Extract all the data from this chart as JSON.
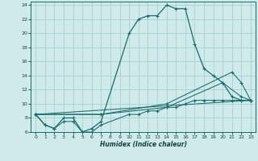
{
  "xlabel": "Humidex (Indice chaleur)",
  "bg_color": "#ceeaea",
  "grid_color": "#aacece",
  "line_color": "#1a6b6b",
  "xlim": [
    -0.5,
    23.5
  ],
  "ylim": [
    6,
    24.5
  ],
  "xticks": [
    0,
    1,
    2,
    3,
    4,
    5,
    6,
    7,
    8,
    9,
    10,
    11,
    12,
    13,
    14,
    15,
    16,
    17,
    18,
    19,
    20,
    21,
    22,
    23
  ],
  "yticks": [
    6,
    8,
    10,
    12,
    14,
    16,
    18,
    20,
    22,
    24
  ],
  "series": [
    {
      "x": [
        0,
        1,
        2,
        3,
        4,
        5,
        6,
        7,
        10,
        11,
        12,
        13,
        14,
        15,
        16,
        17,
        18,
        19,
        20,
        21,
        22,
        23
      ],
      "y": [
        8.5,
        7.0,
        6.5,
        8.0,
        8.0,
        6.0,
        6.5,
        7.5,
        20.0,
        22.0,
        22.5,
        22.5,
        24.0,
        23.5,
        23.5,
        18.5,
        15.0,
        14.0,
        13.0,
        11.0,
        10.5,
        10.5
      ]
    },
    {
      "x": [
        0,
        1,
        2,
        3,
        4,
        5,
        6,
        7,
        10,
        11,
        12,
        13,
        14,
        15,
        16,
        17,
        18,
        19,
        20,
        21,
        22,
        23
      ],
      "y": [
        8.5,
        7.0,
        6.5,
        7.5,
        7.5,
        6.0,
        6.0,
        7.0,
        8.5,
        8.5,
        9.0,
        9.0,
        9.5,
        9.5,
        10.0,
        10.5,
        10.5,
        10.5,
        10.5,
        10.5,
        10.5,
        10.5
      ]
    },
    {
      "x": [
        0,
        23
      ],
      "y": [
        8.5,
        10.5
      ]
    },
    {
      "x": [
        0,
        7,
        14,
        21,
        22,
        23
      ],
      "y": [
        8.5,
        8.5,
        10.0,
        14.5,
        13.0,
        10.5
      ]
    },
    {
      "x": [
        0,
        7,
        14,
        20,
        22,
        23
      ],
      "y": [
        8.5,
        8.5,
        9.5,
        13.0,
        11.0,
        10.5
      ]
    }
  ]
}
